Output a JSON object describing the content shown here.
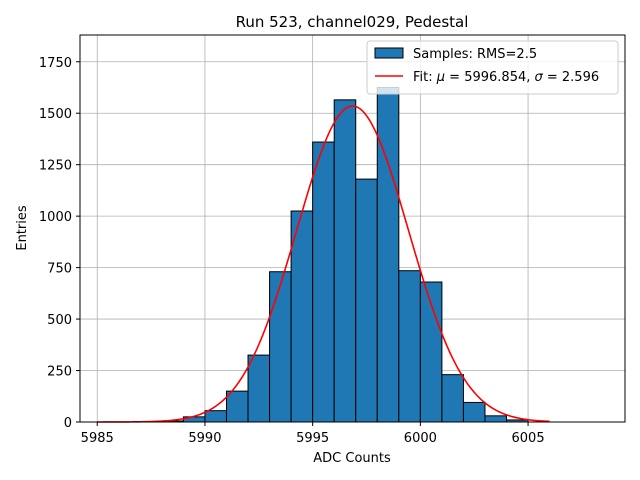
{
  "chart_data": {
    "type": "bar",
    "title": "Run 523, channel029, Pedestal",
    "xlabel": "ADC Counts",
    "ylabel": "Entries",
    "xlim": [
      5984.2,
      6009.5
    ],
    "ylim": [
      0,
      1880
    ],
    "xticks": [
      5985,
      5990,
      5995,
      6000,
      6005
    ],
    "yticks": [
      0,
      250,
      500,
      750,
      1000,
      1250,
      1500,
      1750
    ],
    "grid": true,
    "legend_position": "top-right",
    "bar_color": "#1f77b4",
    "fit_color": "#ff0000",
    "bin_edges": [
      5988,
      5989,
      5990,
      5991,
      5992,
      5993,
      5994,
      5995,
      5996,
      5997,
      5998,
      5999,
      6000,
      6001,
      6002,
      6003,
      6004,
      6005
    ],
    "values": [
      5,
      25,
      55,
      150,
      325,
      730,
      1025,
      1360,
      1565,
      1180,
      1625,
      735,
      680,
      230,
      95,
      30,
      10
    ],
    "series": [
      {
        "name": "Samples: RMS=2.5",
        "type": "histogram"
      },
      {
        "name_prefix": "Fit: ",
        "name_mu_symbol": "μ",
        "name_mu_value": " = 5996.854, ",
        "name_sigma_symbol": "σ",
        "name_sigma_value": " = 2.596",
        "type": "gaussian",
        "amplitude": 1535,
        "mean": 5996.854,
        "sigma": 2.596,
        "x_range": [
          5985,
          6006
        ]
      }
    ]
  }
}
